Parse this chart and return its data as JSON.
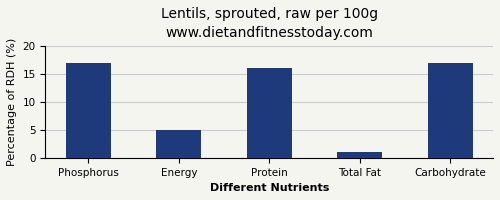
{
  "title": "Lentils, sprouted, raw per 100g",
  "subtitle": "www.dietandfitnesstoday.com",
  "xlabel": "Different Nutrients",
  "ylabel": "Percentage of RDH (%)",
  "categories": [
    "Phosphorus",
    "Energy",
    "Protein",
    "Total Fat",
    "Carbohydrate"
  ],
  "values": [
    17,
    5,
    16,
    1,
    17
  ],
  "bar_color": "#1f3a7a",
  "ylim": [
    0,
    20
  ],
  "yticks": [
    0,
    5,
    10,
    15,
    20
  ],
  "background_color": "#f5f5f0",
  "grid_color": "#cccccc",
  "title_fontsize": 10,
  "subtitle_fontsize": 8,
  "axis_label_fontsize": 8,
  "tick_fontsize": 7.5
}
